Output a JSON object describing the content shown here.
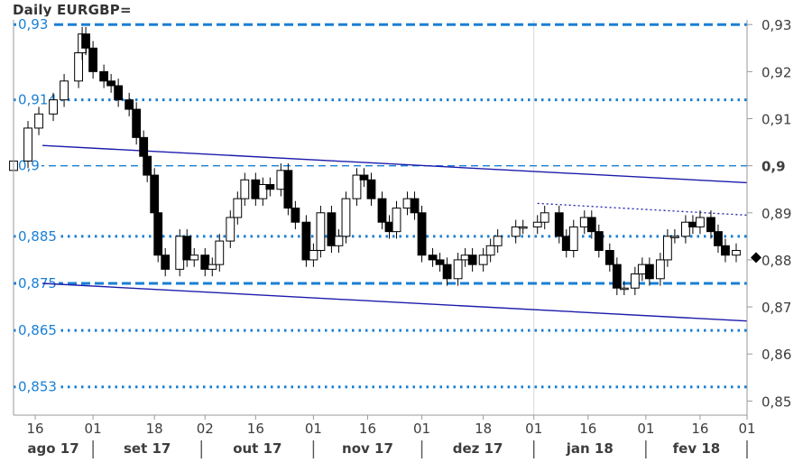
{
  "title": "Daily EURGBP=",
  "colors": {
    "candle": "#000000",
    "level": "#1a7fd4",
    "channel": "#1c1cab",
    "axis": "#9a9a9a",
    "divider": "#d8d8d8",
    "text": "#3d3d3d"
  },
  "chart_data": {
    "type": "candlestick",
    "title": "Daily EURGBP=",
    "x_start": "2017-08-10",
    "x_end": "2018-03-01",
    "ylim": [
      0.847,
      0.931
    ],
    "right_axis_ticks": [
      {
        "value": 0.93,
        "label": "0,93",
        "bold": false
      },
      {
        "value": 0.92,
        "label": "0,92",
        "bold": false
      },
      {
        "value": 0.91,
        "label": "0,91",
        "bold": false
      },
      {
        "value": 0.9,
        "label": "0,9",
        "bold": true
      },
      {
        "value": 0.89,
        "label": "0,89",
        "bold": false
      },
      {
        "value": 0.88,
        "label": "0,88",
        "bold": false
      },
      {
        "value": 0.87,
        "label": "0,87",
        "bold": false
      },
      {
        "value": 0.86,
        "label": "0,86",
        "bold": false
      },
      {
        "value": 0.85,
        "label": "0,85",
        "bold": false
      }
    ],
    "last_price": 0.8805,
    "levels": [
      {
        "value": 0.93,
        "label": "0,93",
        "style": "dashed",
        "weight": "heavy"
      },
      {
        "value": 0.914,
        "label": "0,914",
        "style": "dotted",
        "weight": "heavy"
      },
      {
        "value": 0.9,
        "label": "0,9",
        "style": "dashed",
        "weight": "light"
      },
      {
        "value": 0.885,
        "label": "0,885",
        "style": "dotted",
        "weight": "heavy"
      },
      {
        "value": 0.875,
        "label": "0,875",
        "style": "dashed",
        "weight": "heavy"
      },
      {
        "value": 0.865,
        "label": "0,865",
        "style": "dotted",
        "weight": "heavy"
      },
      {
        "value": 0.853,
        "label": "0,853",
        "style": "dotted",
        "weight": "heavy"
      }
    ],
    "trendlines": [
      {
        "name": "upper",
        "from": [
          "2017-08-18",
          0.9043
        ],
        "to": [
          "2018-03-01",
          0.8964
        ],
        "style": "solid"
      },
      {
        "name": "lower",
        "from": [
          "2017-08-18",
          0.875
        ],
        "to": [
          "2018-03-01",
          0.867
        ],
        "style": "solid"
      },
      {
        "name": "upper-parallel",
        "from": [
          "2018-01-02",
          0.892
        ],
        "to": [
          "2018-03-01",
          0.8895
        ],
        "style": "dotted"
      }
    ],
    "x_ticks": [
      {
        "date": "2017-08-16",
        "label": "16"
      },
      {
        "date": "2017-09-01",
        "label": "01"
      },
      {
        "date": "2017-09-18",
        "label": "18"
      },
      {
        "date": "2017-10-02",
        "label": "02"
      },
      {
        "date": "2017-10-16",
        "label": "16"
      },
      {
        "date": "2017-11-01",
        "label": "01"
      },
      {
        "date": "2017-11-16",
        "label": "16"
      },
      {
        "date": "2017-12-01",
        "label": "01"
      },
      {
        "date": "2017-12-18",
        "label": "18"
      },
      {
        "date": "2018-01-01",
        "label": "01"
      },
      {
        "date": "2018-01-16",
        "label": "16"
      },
      {
        "date": "2018-02-01",
        "label": "01"
      },
      {
        "date": "2018-02-16",
        "label": "16"
      },
      {
        "date": "2018-03-01",
        "label": "01"
      }
    ],
    "months": [
      {
        "label": "ago 17",
        "start": "2017-08-10",
        "end": "2017-09-01"
      },
      {
        "label": "set 17",
        "start": "2017-09-01",
        "end": "2017-10-01"
      },
      {
        "label": "out 17",
        "start": "2017-10-01",
        "end": "2017-11-01"
      },
      {
        "label": "nov 17",
        "start": "2017-11-01",
        "end": "2017-12-01"
      },
      {
        "label": "dez 17",
        "start": "2017-12-01",
        "end": "2018-01-01"
      },
      {
        "label": "jan 18",
        "start": "2018-01-01",
        "end": "2018-02-01"
      },
      {
        "label": "fev 18",
        "start": "2018-02-01",
        "end": "2018-03-01"
      }
    ],
    "year_divider": "2018-01-01",
    "closes": [
      [
        "2017-08-10",
        0.901
      ],
      [
        "2017-08-14",
        0.908
      ],
      [
        "2017-08-17",
        0.911
      ],
      [
        "2017-08-21",
        0.914
      ],
      [
        "2017-08-24",
        0.918
      ],
      [
        "2017-08-28",
        0.924
      ],
      [
        "2017-08-29",
        0.928
      ],
      [
        "2017-08-30",
        0.925
      ],
      [
        "2017-09-01",
        0.92
      ],
      [
        "2017-09-04",
        0.918
      ],
      [
        "2017-09-06",
        0.917
      ],
      [
        "2017-09-08",
        0.914
      ],
      [
        "2017-09-11",
        0.912
      ],
      [
        "2017-09-13",
        0.906
      ],
      [
        "2017-09-15",
        0.902
      ],
      [
        "2017-09-16",
        0.898
      ],
      [
        "2017-09-18",
        0.89
      ],
      [
        "2017-09-19",
        0.881
      ],
      [
        "2017-09-21",
        0.878
      ],
      [
        "2017-09-25",
        0.885
      ],
      [
        "2017-09-27",
        0.88
      ],
      [
        "2017-09-29",
        0.881
      ],
      [
        "2017-10-02",
        0.878
      ],
      [
        "2017-10-04",
        0.879
      ],
      [
        "2017-10-06",
        0.884
      ],
      [
        "2017-10-09",
        0.889
      ],
      [
        "2017-10-11",
        0.893
      ],
      [
        "2017-10-13",
        0.897
      ],
      [
        "2017-10-16",
        0.893
      ],
      [
        "2017-10-18",
        0.896
      ],
      [
        "2017-10-20",
        0.895
      ],
      [
        "2017-10-23",
        0.899
      ],
      [
        "2017-10-25",
        0.891
      ],
      [
        "2017-10-27",
        0.888
      ],
      [
        "2017-10-30",
        0.88
      ],
      [
        "2017-11-01",
        0.882
      ],
      [
        "2017-11-03",
        0.89
      ],
      [
        "2017-11-06",
        0.883
      ],
      [
        "2017-11-08",
        0.885
      ],
      [
        "2017-11-10",
        0.893
      ],
      [
        "2017-11-13",
        0.898
      ],
      [
        "2017-11-15",
        0.897
      ],
      [
        "2017-11-17",
        0.893
      ],
      [
        "2017-11-20",
        0.888
      ],
      [
        "2017-11-22",
        0.886
      ],
      [
        "2017-11-24",
        0.891
      ],
      [
        "2017-11-27",
        0.893
      ],
      [
        "2017-11-29",
        0.89
      ],
      [
        "2017-12-01",
        0.881
      ],
      [
        "2017-12-04",
        0.88
      ],
      [
        "2017-12-06",
        0.879
      ],
      [
        "2017-12-08",
        0.876
      ],
      [
        "2017-12-11",
        0.88
      ],
      [
        "2017-12-13",
        0.881
      ],
      [
        "2017-12-15",
        0.879
      ],
      [
        "2017-12-18",
        0.881
      ],
      [
        "2017-12-20",
        0.883
      ],
      [
        "2017-12-22",
        0.885
      ],
      [
        "2017-12-27",
        0.887
      ],
      [
        "2017-12-29",
        0.887
      ],
      [
        "2018-01-02",
        0.888
      ],
      [
        "2018-01-04",
        0.89
      ],
      [
        "2018-01-08",
        0.885
      ],
      [
        "2018-01-10",
        0.882
      ],
      [
        "2018-01-12",
        0.887
      ],
      [
        "2018-01-15",
        0.889
      ],
      [
        "2018-01-17",
        0.886
      ],
      [
        "2018-01-19",
        0.882
      ],
      [
        "2018-01-22",
        0.879
      ],
      [
        "2018-01-24",
        0.874
      ],
      [
        "2018-01-26",
        0.874
      ],
      [
        "2018-01-29",
        0.877
      ],
      [
        "2018-01-31",
        0.879
      ],
      [
        "2018-02-02",
        0.876
      ],
      [
        "2018-02-05",
        0.88
      ],
      [
        "2018-02-07",
        0.885
      ],
      [
        "2018-02-09",
        0.885
      ],
      [
        "2018-02-12",
        0.888
      ],
      [
        "2018-02-14",
        0.887
      ],
      [
        "2018-02-16",
        0.889
      ],
      [
        "2018-02-19",
        0.886
      ],
      [
        "2018-02-21",
        0.883
      ],
      [
        "2018-02-23",
        0.881
      ],
      [
        "2018-02-26",
        0.882
      ]
    ]
  }
}
